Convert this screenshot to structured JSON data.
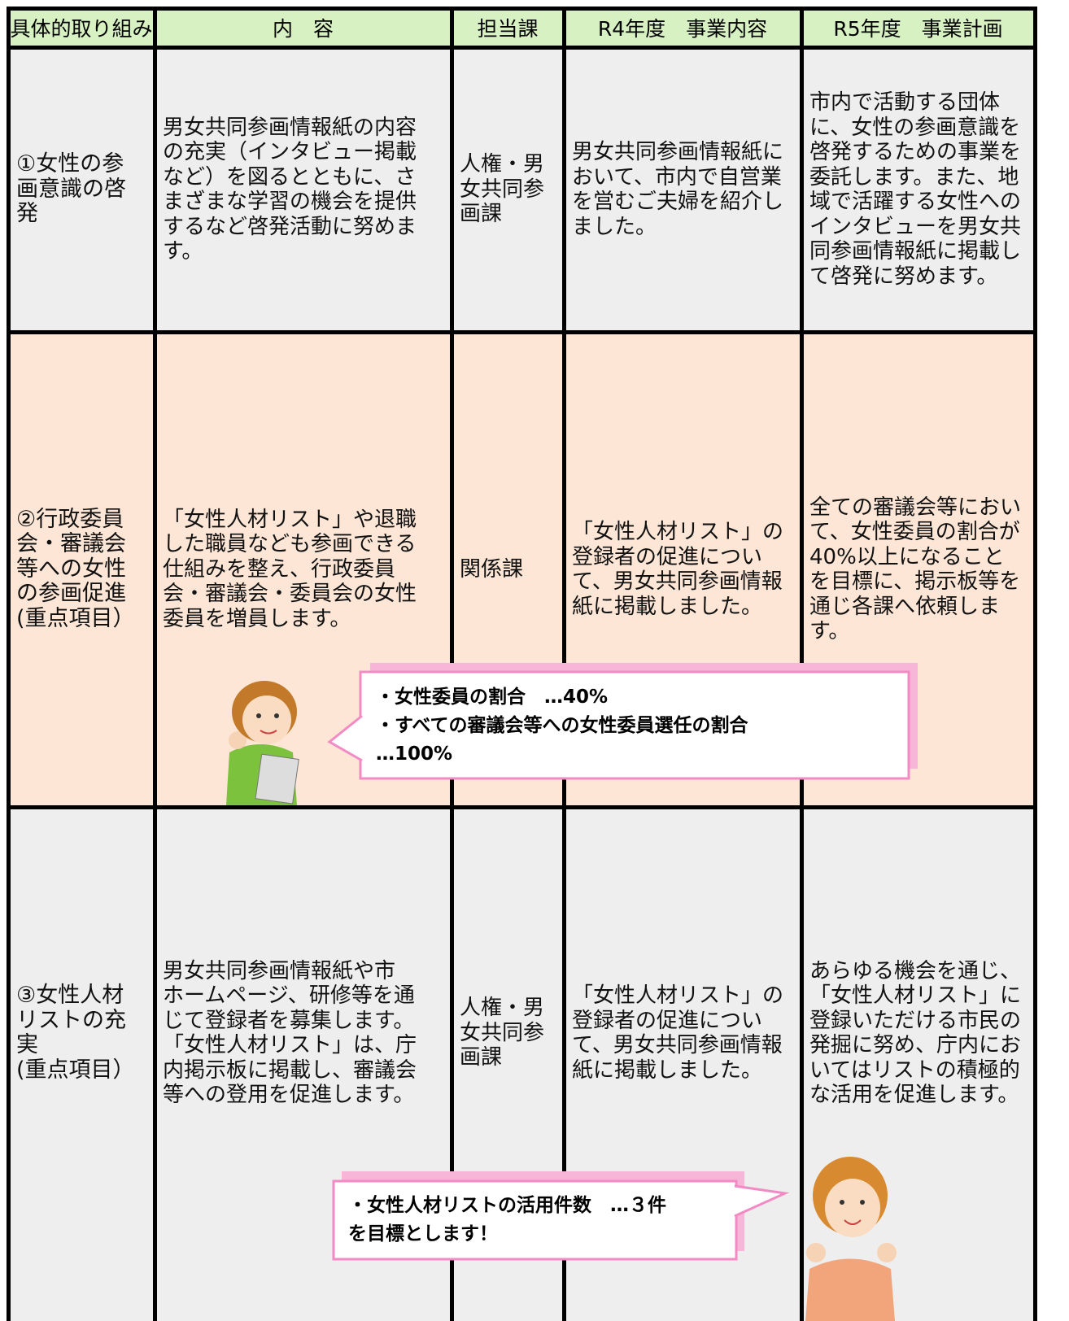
{
  "table": {
    "header": [
      "具体的取り組み",
      "内　容",
      "担当課",
      "R4年度　事業内容",
      "R5年度　事業計画"
    ],
    "rows": [
      {
        "cells": [
          [
            "①女性の参",
            "画意識の啓",
            "発"
          ],
          [
            "男女共同参画情報紙の内容",
            "の充実（インタビュー掲載",
            "など）を図るとともに、さ",
            "まざまな学習の機会を提供",
            "するなど啓発活動に努めま",
            "す。"
          ],
          [
            "人権・男",
            "女共同参",
            "画課"
          ],
          [
            "男女共同参画情報紙に",
            "おいて、市内で自営業",
            "を営むご夫婦を紹介し",
            "ました。"
          ],
          [
            "市内で活動する団体",
            "に、女性の参画意識を",
            "啓発するための事業を",
            "委託します。また、地",
            "域で活躍する女性への",
            "インタビューを男女共",
            "同参画情報紙に掲載し",
            "て啓発に努めます。"
          ]
        ]
      },
      {
        "cells": [
          [
            "②行政委員",
            "会・審議会",
            "等への女性",
            "の参画促進",
            "(重点項目）"
          ],
          [
            "「女性人材リスト」や退職",
            "した職員なども参画できる",
            "仕組みを整え、行政委員",
            "会・審議会・委員会の女性",
            "委員を増員します。"
          ],
          [
            "関係課"
          ],
          [
            "「女性人材リスト」の",
            "登録者の促進につい",
            "て、男女共同参画情報",
            "紙に掲載しました。"
          ],
          [
            "全ての審議会等におい",
            "て、女性委員の割合が",
            "40%以上になること",
            "を目標に、掲示板等を",
            "通じ各課へ依頼しま",
            "す。"
          ]
        ]
      },
      {
        "cells": [
          [
            "③女性人材",
            "リストの充",
            "実",
            "(重点項目）"
          ],
          [
            "男女共同参画情報紙や市",
            "ホームページ、研修等を通",
            "じて登録者を募集します。",
            "「女性人材リスト」は、庁",
            "内掲示板に掲載し、審議会",
            "等への登用を促進します。"
          ],
          [
            "人権・男",
            "女共同参",
            "画課"
          ],
          [
            "「女性人材リスト」の",
            "登録者の促進につい",
            "て、男女共同参画情報",
            "紙に掲載しました。"
          ],
          [
            "あらゆる機会を通じ、",
            "「女性人材リスト」に",
            "登録いただける市民の",
            "発掘に努め、庁内にお",
            "いてはリストの積極的",
            "な活用を促進します。"
          ]
        ]
      }
    ]
  },
  "callouts": [
    {
      "lines": [
        "・女性委員の割合　…40%",
        "・すべての審議会等への女性委員選任の割合",
        "…100%"
      ]
    },
    {
      "lines": [
        "・女性人材リストの活用件数　…３件",
        "を目標とします！"
      ]
    }
  ]
}
